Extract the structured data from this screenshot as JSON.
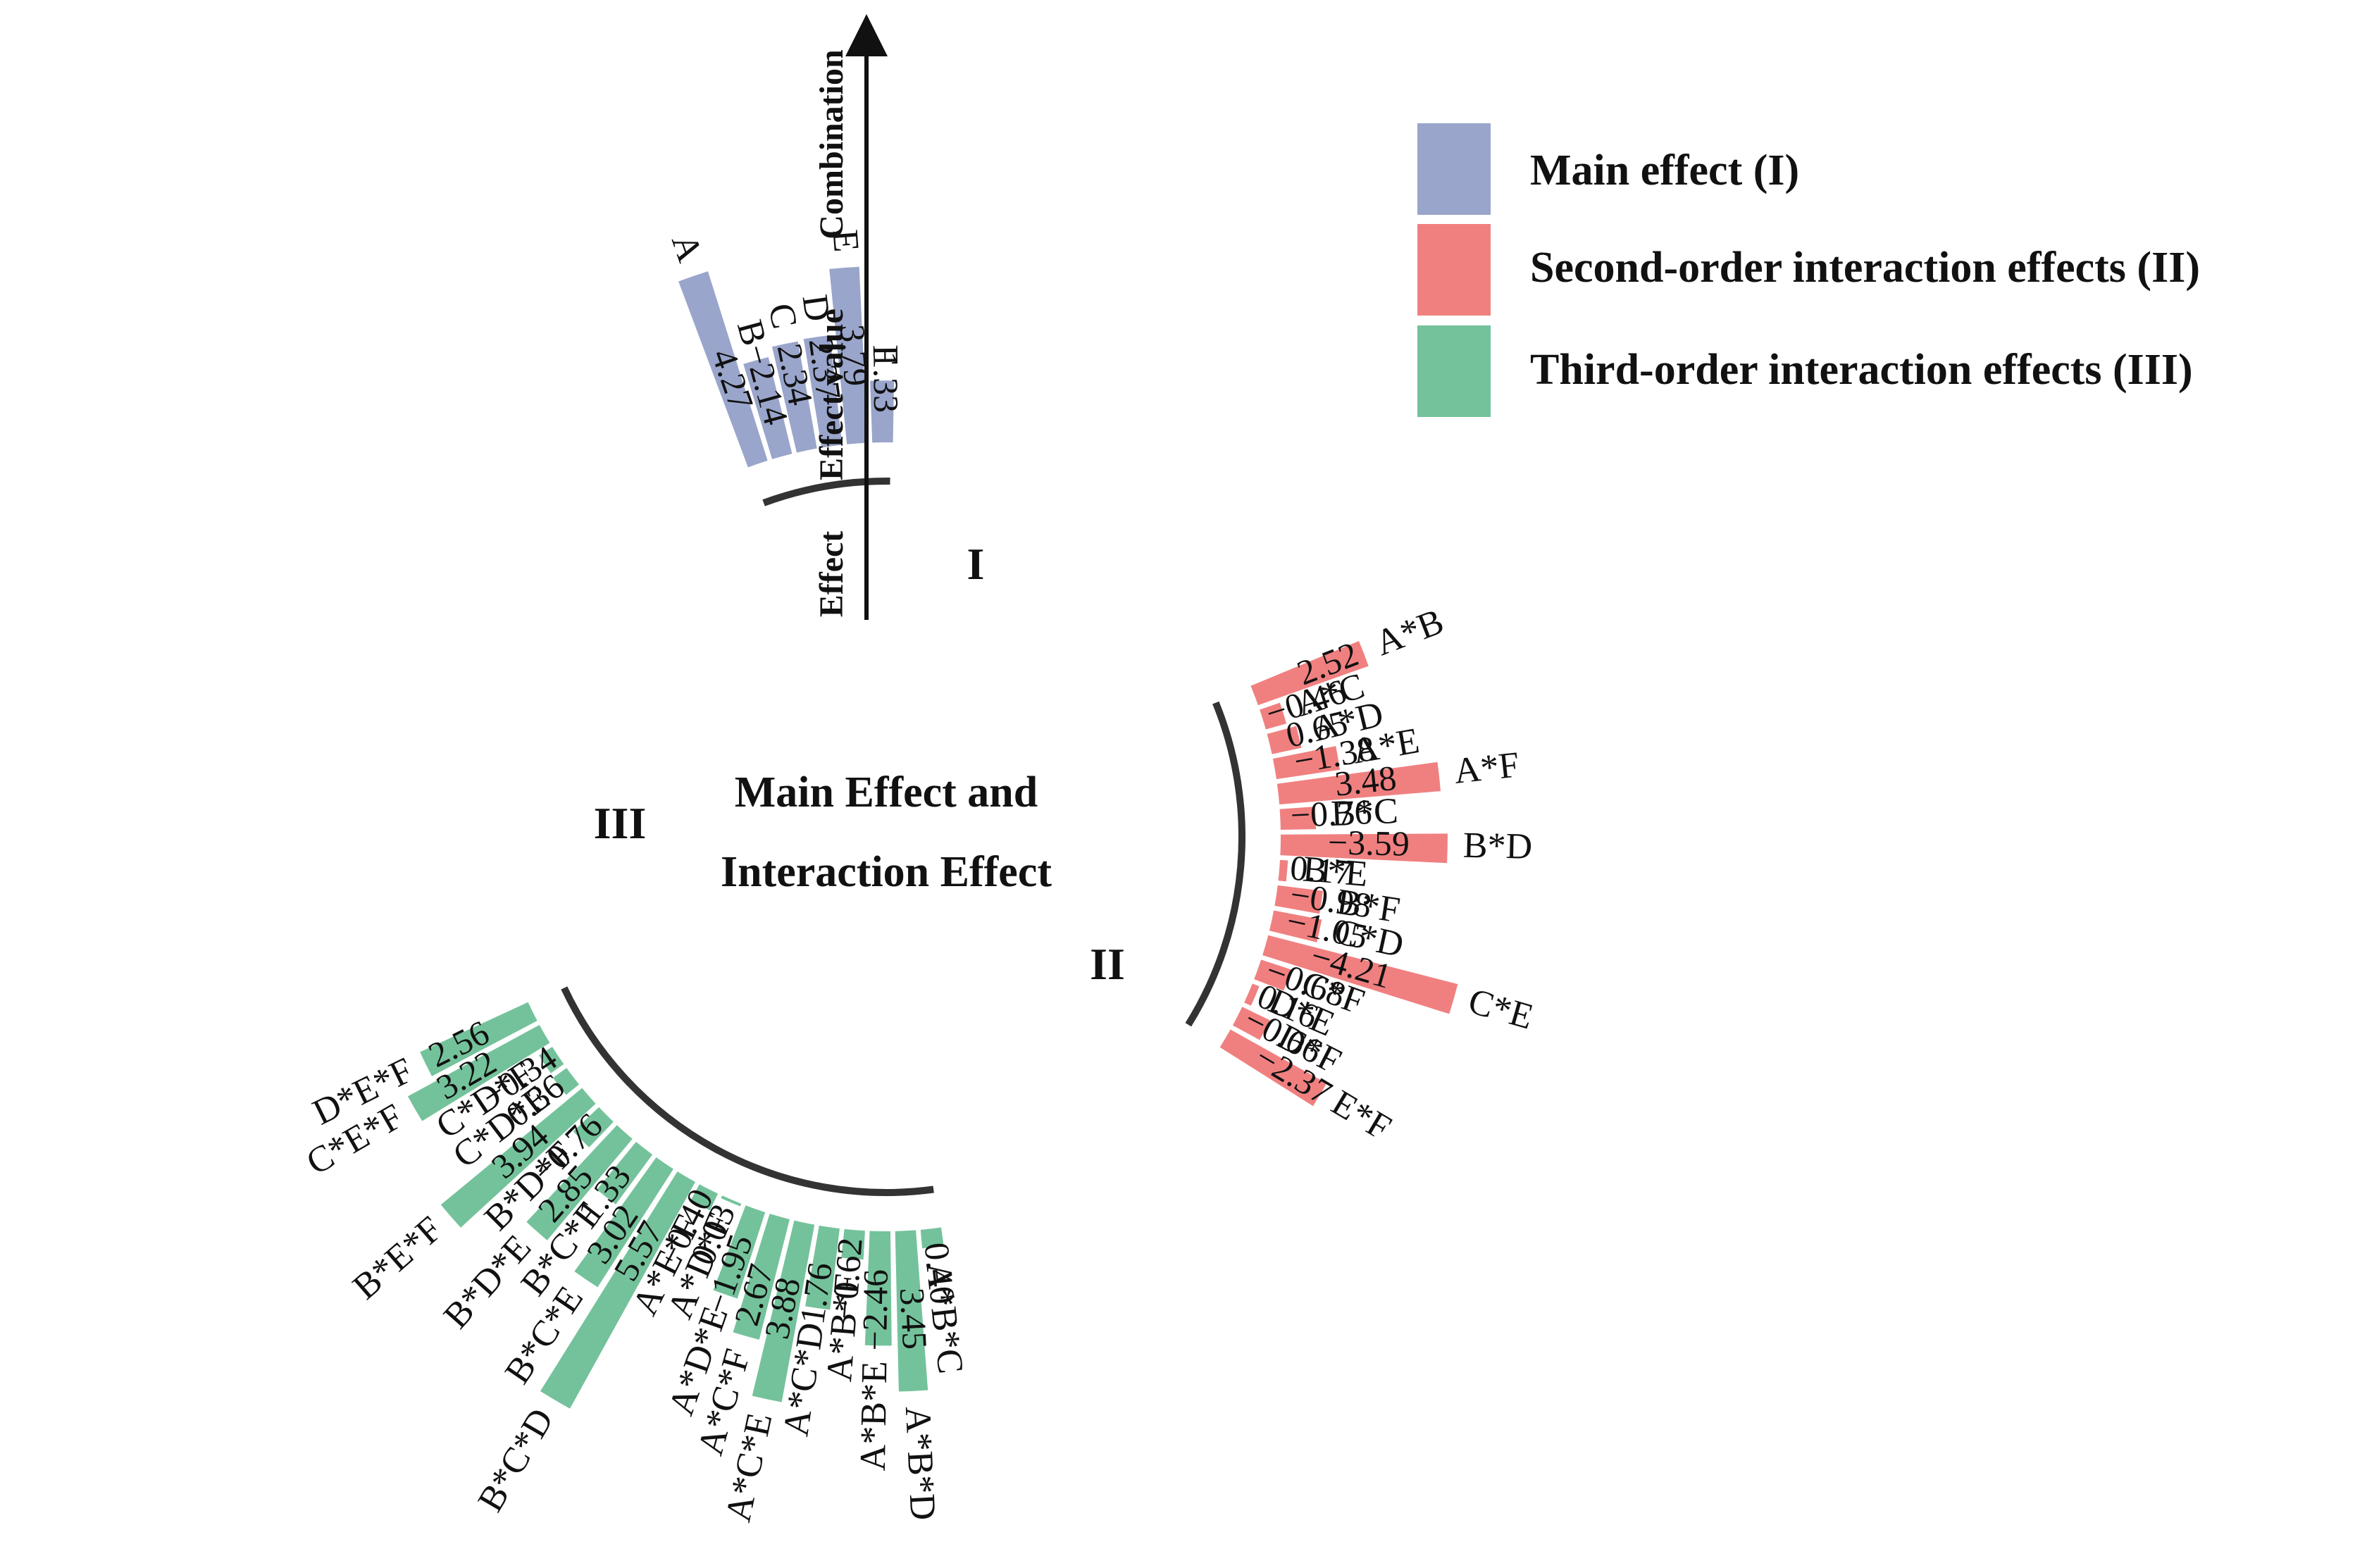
{
  "chart_data": {
    "type": "bar",
    "layout": "circular",
    "title": "Main Effect and Interaction Effect",
    "axis": {
      "labels": [
        "Effect",
        "Effect value",
        "Combination"
      ]
    },
    "legend": {
      "placement": "top-right",
      "entries": [
        {
          "name": "Main effect (I)",
          "color": "#9aa5cb"
        },
        {
          "name": "Second-order interaction effects (II)",
          "color": "#f08080"
        },
        {
          "name": "Third-order interaction effects (III)",
          "color": "#74c29b"
        }
      ]
    },
    "series": [
      {
        "name": "I",
        "color": "#9aa5cb",
        "categories": [
          "A",
          "B",
          "C",
          "D",
          "E",
          "F"
        ],
        "values": [
          4.27,
          -2.14,
          2.34,
          2.37,
          3.79,
          1.33
        ],
        "value_labels": [
          "4.27",
          "−2.14",
          "2.34",
          "2.37",
          "3.79",
          "1.33"
        ]
      },
      {
        "name": "II",
        "color": "#f08080",
        "categories": [
          "A*B",
          "A*C",
          "A*D",
          "A*E",
          "A*F",
          "B*C",
          "B*D",
          "B*E",
          "B*F",
          "C*D",
          "C*E",
          "C*F",
          "D*E",
          "D*F",
          "E*F"
        ],
        "values": [
          2.52,
          -0.46,
          0.65,
          -1.38,
          3.48,
          -0.76,
          -3.59,
          0.17,
          -0.98,
          -1.05,
          -4.21,
          -0.68,
          0.16,
          -0.66,
          -2.37
        ],
        "value_labels": [
          "2.52",
          "−0.46",
          "0.65",
          "−1.38",
          "3.48",
          "−0.76",
          "−3.59",
          "0.17",
          "−0.98",
          "−1.05",
          "−4.21",
          "−0.68",
          "0.16",
          "−0.66",
          "−2.37"
        ]
      },
      {
        "name": "III",
        "color": "#74c29b",
        "categories": [
          "A*B*C",
          "A*B*D",
          "A*B*E",
          "A*B*F",
          "A*C*D",
          "A*C*E",
          "A*C*F",
          "A*D*E",
          "A*D*F",
          "A*E*F",
          "B*C*D",
          "B*C*E",
          "B*C*F",
          "B*D*E",
          "B*D*F",
          "B*E*F",
          "C*D*E",
          "C*D*F",
          "C*E*F",
          "D*E*F"
        ],
        "values": [
          0.4,
          3.45,
          -2.46,
          -0.62,
          1.76,
          3.88,
          2.67,
          -1.95,
          0.03,
          -0.4,
          5.57,
          3.02,
          1.33,
          2.85,
          -0.76,
          3.94,
          0.36,
          -0.34,
          3.22,
          2.56
        ],
        "value_labels": [
          "0.40",
          "3.45",
          "−2.46",
          "−0.62",
          "1.76",
          "3.88",
          "2.67",
          "−1.95",
          "0.03",
          "−0.40",
          "5.57",
          "3.02",
          "1.33",
          "2.85",
          "−0.76",
          "3.94",
          "0.36",
          "−0.34",
          "3.22",
          "2.56"
        ]
      }
    ]
  }
}
